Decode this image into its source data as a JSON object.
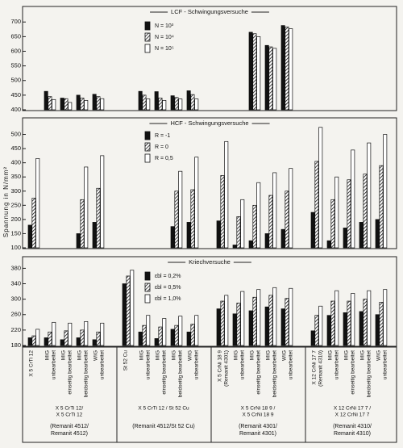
{
  "chart_data": [
    {
      "type": "bar",
      "title": "LCF - Schwingungsversuche",
      "ylim": [
        400,
        720
      ],
      "yticks": [
        400,
        450,
        500,
        550,
        600,
        650,
        700
      ],
      "series": [
        {
          "name": "N = 10³",
          "fill": "solid",
          "values": [
            null,
            463,
            440,
            450,
            453,
            null,
            463,
            462,
            448,
            465,
            null,
            null,
            665,
            620,
            688,
            null,
            null,
            null,
            null,
            null
          ]
        },
        {
          "name": "N = 10⁴",
          "fill": "hatched",
          "values": [
            null,
            445,
            438,
            440,
            445,
            null,
            450,
            440,
            442,
            452,
            null,
            null,
            660,
            615,
            683,
            null,
            null,
            null,
            null,
            null
          ]
        },
        {
          "name": "N = 10⁵",
          "fill": "open",
          "values": [
            null,
            435,
            425,
            432,
            438,
            null,
            437,
            432,
            437,
            437,
            null,
            null,
            650,
            610,
            677,
            null,
            null,
            null,
            null,
            null
          ]
        }
      ]
    },
    {
      "type": "bar",
      "title": "HCF - Schwingungsversuche",
      "ylabel": "Spannung in N/mm²",
      "ylim": [
        100,
        530
      ],
      "yticks": [
        100,
        150,
        200,
        250,
        300,
        350,
        400,
        450,
        500
      ],
      "series": [
        {
          "name": "R = -1",
          "fill": "solid",
          "values": [
            180,
            null,
            null,
            150,
            190,
            null,
            null,
            null,
            175,
            190,
            195,
            110,
            125,
            150,
            165,
            225,
            125,
            170,
            190,
            200
          ]
        },
        {
          "name": "R = 0",
          "fill": "hatched",
          "values": [
            275,
            null,
            null,
            270,
            310,
            null,
            null,
            null,
            300,
            305,
            355,
            210,
            250,
            285,
            300,
            405,
            270,
            340,
            360,
            390
          ]
        },
        {
          "name": "R = 0,5",
          "fill": "open",
          "values": [
            415,
            null,
            null,
            385,
            425,
            null,
            null,
            null,
            370,
            420,
            475,
            270,
            330,
            365,
            380,
            525,
            350,
            445,
            470,
            500
          ]
        }
      ]
    },
    {
      "type": "bar",
      "title": "Kriechversuche",
      "ylim": [
        180,
        385
      ],
      "yticks": [
        180,
        220,
        260,
        300,
        340,
        380
      ],
      "categories": [
        [
          "X 5 CrTi 12"
        ],
        [
          "MIG",
          "unbearbeitet"
        ],
        [
          "MIG",
          "einseitig bearbeitet"
        ],
        [
          "MIG",
          "beidseitig bearbeitet"
        ],
        [
          "WIG",
          "unbearbeitet"
        ],
        [
          "St 52 Cu"
        ],
        [
          "MIG",
          "unbearbeitet"
        ],
        [
          "MIG",
          "einseitig bearbeitet"
        ],
        [
          "MIG",
          "beidseitig bearbeitet"
        ],
        [
          "WIG",
          "unbearbeitet"
        ],
        [
          "X 5 CrNi 18 9",
          "(Remanit 4301)"
        ],
        [
          "MIG",
          "unbearbeitet"
        ],
        [
          "MIG",
          "einseitig bearbeitet"
        ],
        [
          "MIG",
          "beidseitig bearbeitet"
        ],
        [
          "WIG",
          "unbearbeitet"
        ],
        [
          "X 12 CrNi 17 7",
          "(Remanit 4310)"
        ],
        [
          "MIG",
          "unbearbeitet"
        ],
        [
          "MIG",
          "einseitig bearbeitet"
        ],
        [
          "MIG",
          "beidseitig bearbeitet"
        ],
        [
          "WIG",
          "unbearbeitet"
        ]
      ],
      "groups": [
        {
          "joint": [
            "X 5 CrTi 12/",
            "X 5 CrTi 12"
          ],
          "label": [
            "(Remanit 4512/",
            "Remanit 4512)"
          ]
        },
        {
          "joint": [
            "X 5 CrTi 12 / St 52 Cu"
          ],
          "label": [
            "(Remanit 4512/St 52 Cu)"
          ]
        },
        {
          "joint": [
            "X 5 CrNi 18 9 /",
            "X 5 CrNi 18 9"
          ],
          "label": [
            "(Remanit 4301/",
            "Remanit 4301)"
          ]
        },
        {
          "joint": [
            "X 12 CrNi 17 7 /",
            "X 12 CrNi 17 7"
          ],
          "label": [
            "(Remanit 4310/",
            "Remanit 4310)"
          ]
        }
      ],
      "series": [
        {
          "name": "εbl = 0,2%",
          "fill": "solid",
          "values": [
            200,
            200,
            195,
            200,
            195,
            340,
            215,
            198,
            222,
            215,
            275,
            262,
            270,
            280,
            275,
            218,
            258,
            265,
            268,
            260
          ]
        },
        {
          "name": "εbl = 0,5%",
          "fill": "hatched",
          "values": [
            205,
            215,
            218,
            220,
            215,
            360,
            232,
            228,
            232,
            235,
            295,
            290,
            305,
            310,
            302,
            258,
            295,
            295,
            300,
            292
          ]
        },
        {
          "name": "εbl = 1,0%",
          "fill": "open",
          "values": [
            222,
            240,
            238,
            242,
            238,
            375,
            258,
            250,
            256,
            258,
            310,
            320,
            325,
            330,
            328,
            282,
            322,
            315,
            322,
            325
          ]
        }
      ]
    }
  ]
}
